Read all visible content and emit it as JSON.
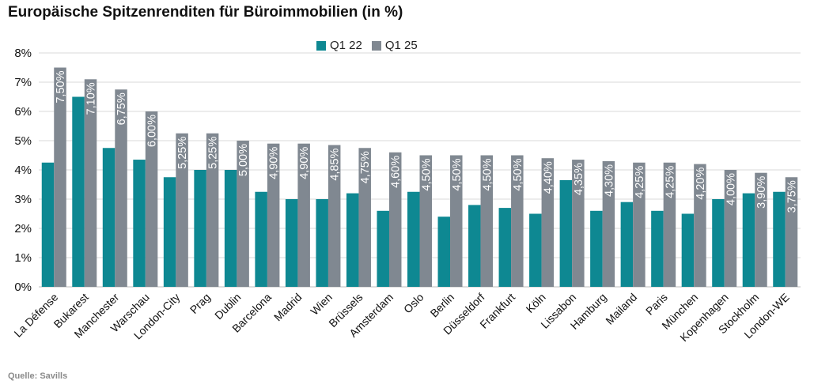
{
  "chart_data": {
    "type": "bar",
    "title": "Europäische Spitzenrenditen für Büroimmobilien (in %)",
    "categories": [
      "La Défense",
      "Bukarest",
      "Manchester",
      "Warschau",
      "London-City",
      "Prag",
      "Dublin",
      "Barcelona",
      "Madrid",
      "Wien",
      "Brüssels",
      "Amsterdam",
      "Oslo",
      "Berlin",
      "Düsseldorf",
      "Frankfurt",
      "Köln",
      "Lissabon",
      "Hamburg",
      "Mailand",
      "Paris",
      "München",
      "Kopenhagen",
      "Stockholm",
      "London-WE"
    ],
    "series": [
      {
        "name": "Q1 22",
        "color": "#0e8892",
        "values": [
          4.25,
          6.5,
          4.75,
          4.35,
          3.75,
          4.0,
          4.0,
          3.25,
          3.0,
          3.0,
          3.2,
          2.6,
          3.25,
          2.4,
          2.8,
          2.7,
          2.5,
          3.65,
          2.6,
          2.9,
          2.6,
          2.5,
          3.0,
          3.2,
          3.25
        ]
      },
      {
        "name": "Q1 25",
        "color": "#808891",
        "values": [
          7.5,
          7.1,
          6.75,
          6.0,
          5.25,
          5.25,
          5.0,
          4.9,
          4.9,
          4.85,
          4.75,
          4.6,
          4.5,
          4.5,
          4.5,
          4.5,
          4.4,
          4.35,
          4.3,
          4.25,
          4.25,
          4.2,
          4.0,
          3.9,
          3.75
        ],
        "labels": [
          "7,50%",
          "7,10%",
          "6,75%",
          "6,00%",
          "5,25%",
          "5,25%",
          "5,00%",
          "4,90%",
          "4,90%",
          "4,85%",
          "4,75%",
          "4,60%",
          "4,50%",
          "4,50%",
          "4,50%",
          "4,50%",
          "4,40%",
          "4,35%",
          "4,30%",
          "4,25%",
          "4,25%",
          "4,20%",
          "4,00%",
          "3,90%",
          "3,75%"
        ]
      }
    ],
    "y_ticks": [
      "0%",
      "1%",
      "2%",
      "3%",
      "4%",
      "5%",
      "6%",
      "7%",
      "8%"
    ],
    "ylim": [
      0,
      8
    ],
    "grid": true,
    "legend": "top-center"
  },
  "source": "Quelle: Savills"
}
